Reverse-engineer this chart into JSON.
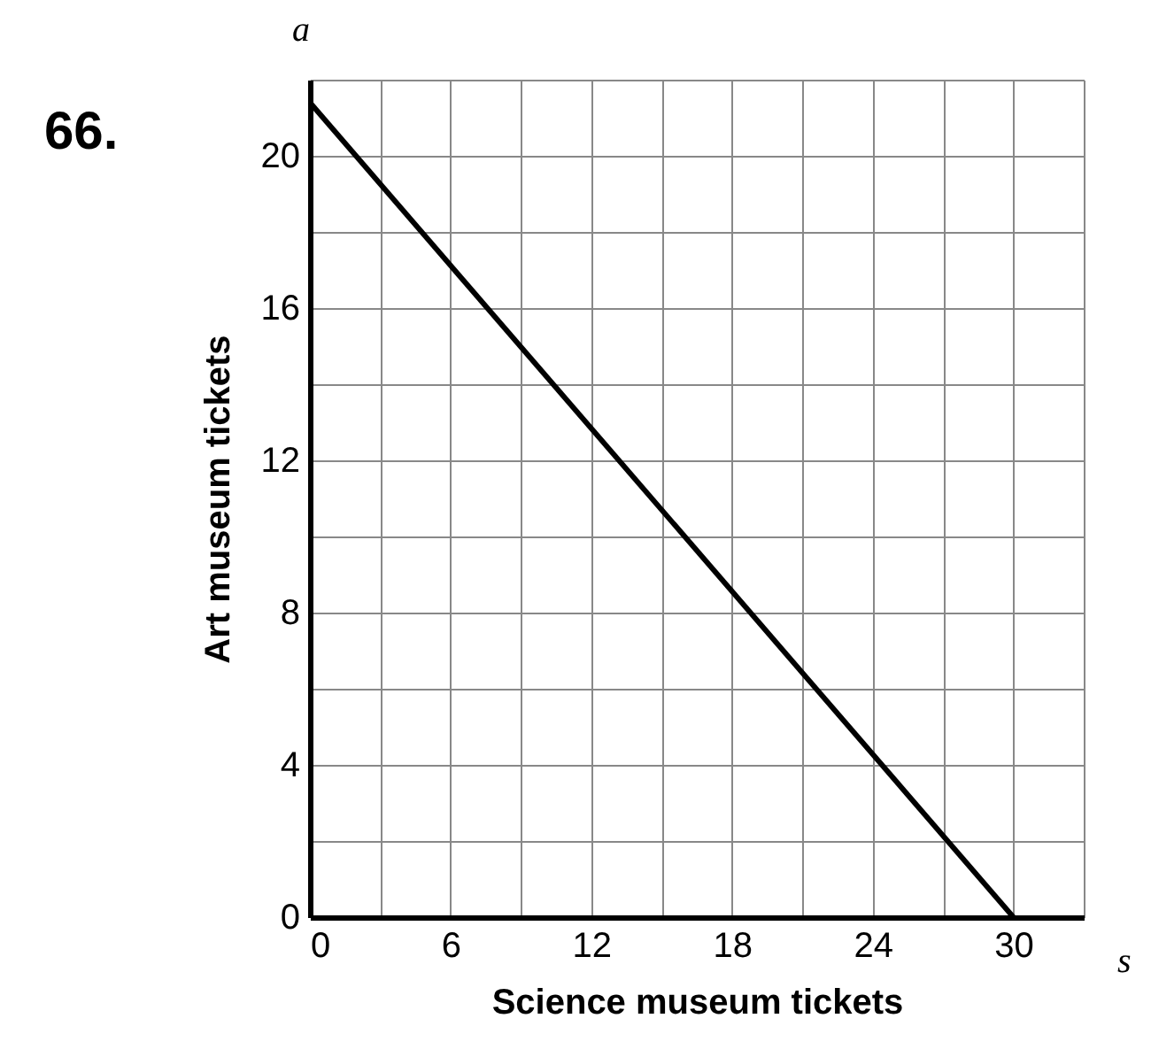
{
  "chart_data": {
    "type": "line",
    "xlabel": "Science museum tickets",
    "ylabel": "Art museum tickets",
    "annotations": [
      "66.",
      "a",
      "s"
    ],
    "x": [
      0,
      30
    ],
    "series": [
      {
        "color": "#000000",
        "values": [
          21.4,
          0
        ]
      }
    ],
    "xlim": [
      0,
      33
    ],
    "ylim": [
      0,
      22
    ],
    "xticks": [
      0,
      {
        "value": 3,
        "label": null
      },
      6,
      {
        "value": 9,
        "label": null
      },
      12,
      {
        "value": 15,
        "label": null
      },
      18,
      {
        "value": 21,
        "label": null
      },
      24,
      {
        "value": 27,
        "label": null
      },
      30,
      {
        "value": 33,
        "label": null
      }
    ],
    "yticks": [
      0,
      {
        "value": 2,
        "label": null
      },
      4,
      {
        "value": 6,
        "label": null
      },
      8,
      {
        "value": 10,
        "label": null
      },
      12,
      {
        "value": 14,
        "label": null
      },
      16,
      {
        "value": 18,
        "label": null
      },
      20,
      {
        "value": 22,
        "label": null
      }
    ],
    "grid": true,
    "marker": "none",
    "line_style": "solid"
  }
}
